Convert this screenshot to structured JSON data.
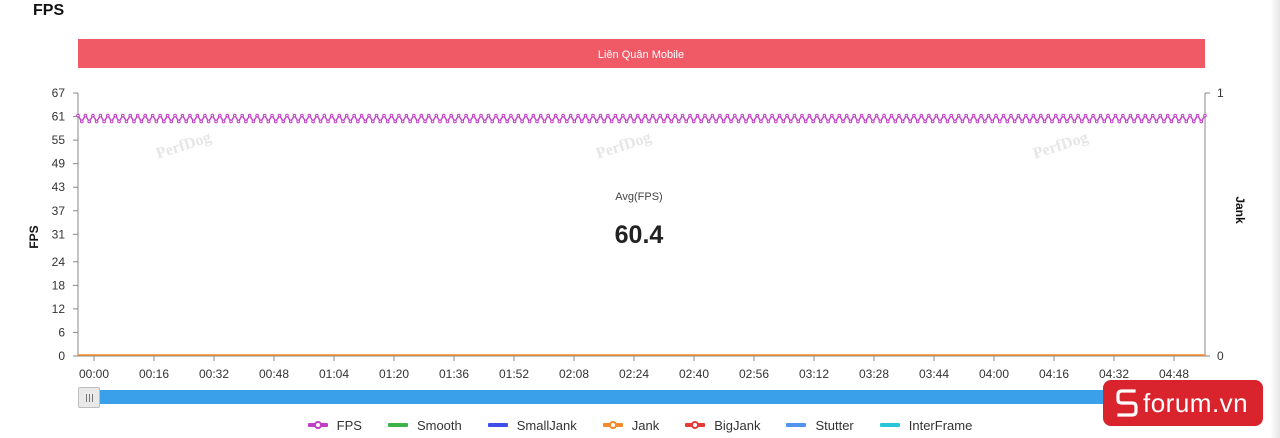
{
  "page": {
    "title": "FPS"
  },
  "chart_data": {
    "type": "line",
    "banner": "Liên Quân Mobile",
    "ylabel": "FPS",
    "y2label": "Jank",
    "yticks": [
      0,
      6,
      12,
      18,
      24,
      31,
      37,
      43,
      49,
      55,
      61,
      67
    ],
    "ylim": [
      0,
      67
    ],
    "y2ticks": [
      0,
      1
    ],
    "y2lim": [
      0,
      1
    ],
    "xticks": [
      "00:00",
      "00:16",
      "00:32",
      "00:48",
      "01:04",
      "01:20",
      "01:36",
      "01:52",
      "02:08",
      "02:24",
      "02:40",
      "02:56",
      "03:12",
      "03:28",
      "03:44",
      "04:00",
      "04:16",
      "04:32",
      "04:48"
    ],
    "x_range_seconds": [
      0,
      302
    ],
    "annotation": {
      "label": "Avg(FPS)",
      "value": "60.4"
    },
    "watermark": "PerfDog",
    "series": [
      {
        "name": "FPS",
        "color": "#c23ec7",
        "pattern": "oscillating",
        "min": 60,
        "max": 61
      },
      {
        "name": "Smooth",
        "color": "#3bb44a"
      },
      {
        "name": "SmallJank",
        "color": "#3e4ee6"
      },
      {
        "name": "Jank",
        "color": "#f58a2a",
        "pattern": "flat",
        "value": 0
      },
      {
        "name": "BigJank",
        "color": "#e63b3b"
      },
      {
        "name": "Stutter",
        "color": "#4f94ef"
      },
      {
        "name": "InterFrame",
        "color": "#29c6d8"
      }
    ],
    "grid": false,
    "legend_position": "bottom"
  },
  "colors": {
    "banner": "#f05a67",
    "slider": "#3aa0ea",
    "badge": "#d9232d"
  },
  "brand": {
    "text": "forum.vn",
    "logo_icon": "s-logo-icon"
  }
}
